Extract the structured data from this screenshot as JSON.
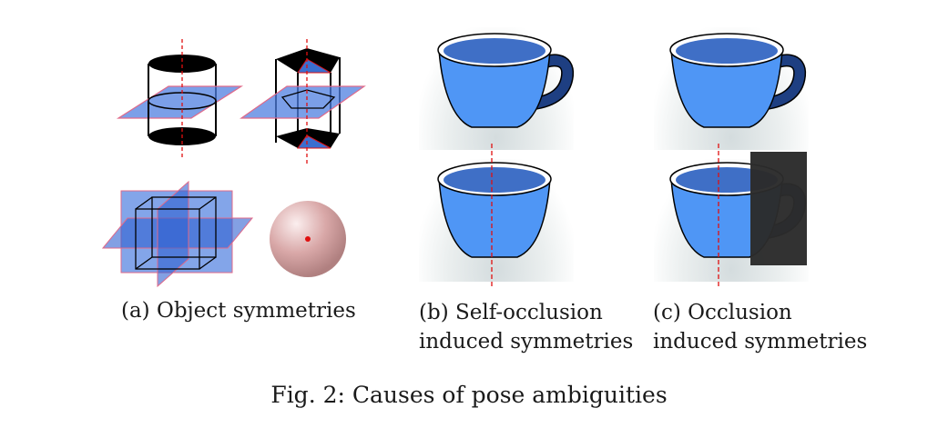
{
  "panels": [
    {
      "caption_lines": [
        "(a) Object symmetries"
      ]
    },
    {
      "caption_lines": [
        "(b) Self-occlusion",
        "induced symmetries"
      ]
    },
    {
      "caption_lines": [
        "(c) Occlusion",
        "induced symmetries"
      ]
    }
  ],
  "figure_caption": "Fig. 2: Causes of pose ambiguities",
  "colors": {
    "plane_blue": "#4f7fe0",
    "cup_blue": "#4f96f5",
    "handle_dark": "#1e3f82",
    "occluder": "#2b2b2b",
    "symmetry_axis": "#e01010"
  }
}
